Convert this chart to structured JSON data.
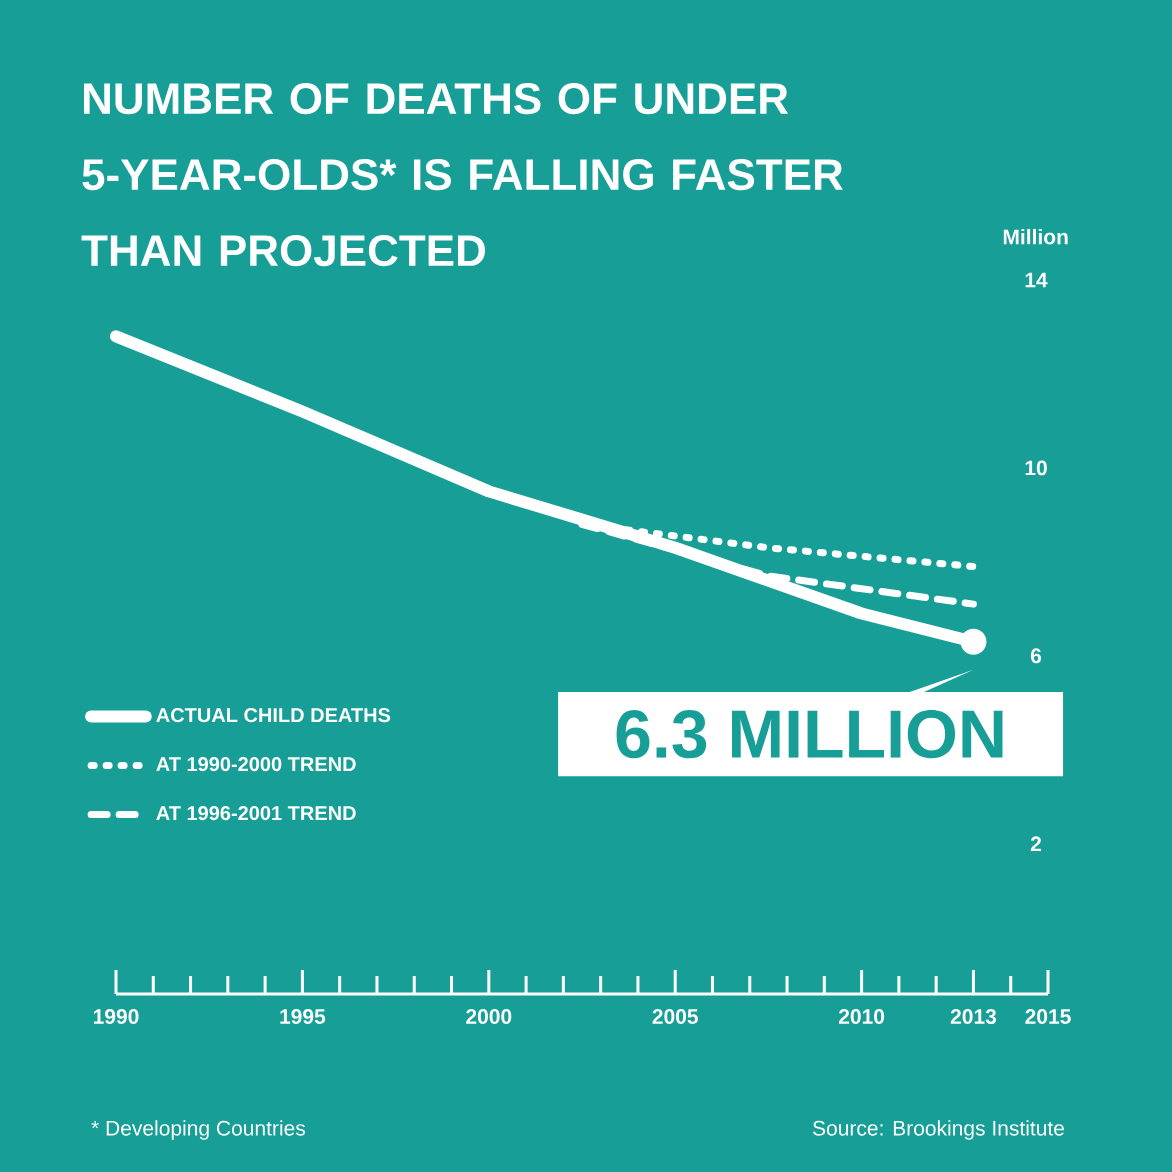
{
  "chart_data": {
    "type": "line",
    "title": "NUMBER OF DEATHS OF UNDER 5-YEAR-OLDS* IS FALLING FASTER THAN PROJECTED",
    "ylabel": "Million",
    "xlim": [
      1990,
      2015
    ],
    "ylim": [
      -1.2,
      14
    ],
    "xticks": [
      {
        "value": 1990,
        "label": "1990"
      },
      {
        "value": 1991,
        "label": null
      },
      {
        "value": 1992,
        "label": null
      },
      {
        "value": 1993,
        "label": null
      },
      {
        "value": 1994,
        "label": null
      },
      {
        "value": 1995,
        "label": "1995"
      },
      {
        "value": 1996,
        "label": null
      },
      {
        "value": 1997,
        "label": null
      },
      {
        "value": 1998,
        "label": null
      },
      {
        "value": 1999,
        "label": null
      },
      {
        "value": 2000,
        "label": "2000"
      },
      {
        "value": 2001,
        "label": null
      },
      {
        "value": 2002,
        "label": null
      },
      {
        "value": 2003,
        "label": null
      },
      {
        "value": 2004,
        "label": null
      },
      {
        "value": 2005,
        "label": "2005"
      },
      {
        "value": 2006,
        "label": null
      },
      {
        "value": 2007,
        "label": null
      },
      {
        "value": 2008,
        "label": null
      },
      {
        "value": 2009,
        "label": null
      },
      {
        "value": 2010,
        "label": "2010"
      },
      {
        "value": 2011,
        "label": null
      },
      {
        "value": 2012,
        "label": null
      },
      {
        "value": 2013,
        "label": "2013"
      },
      {
        "value": 2014,
        "label": null
      },
      {
        "value": 2015,
        "label": "2015"
      }
    ],
    "yticks": [
      2,
      6,
      10,
      14
    ],
    "legend": "left",
    "series": [
      {
        "name": "ACTUAL CHILD DEATHS",
        "color": "#ffffff",
        "line_style": "solid",
        "x": [
          1990,
          1995,
          2000,
          2005,
          2010,
          2013
        ],
        "values": [
          12.8,
          11.2,
          9.5,
          8.3,
          6.9,
          6.3
        ]
      },
      {
        "name": "AT 1990-2000 TREND",
        "color": "#ffffff",
        "line_style": "dotted",
        "x": [
          2002.5,
          2007.5,
          2013
        ],
        "values": [
          8.8,
          8.3,
          7.9
        ]
      },
      {
        "name": "AT 1996-2001 TREND",
        "color": "#ffffff",
        "line_style": "dashed",
        "x": [
          2002.5,
          2007.5,
          2013
        ],
        "values": [
          8.8,
          7.7,
          7.1
        ]
      }
    ],
    "annotations": [
      {
        "text": "6.3 MILLION",
        "x": 2013,
        "y": 6.3
      },
      "* Developing Countries",
      "Source: Brookings Institute"
    ]
  }
}
